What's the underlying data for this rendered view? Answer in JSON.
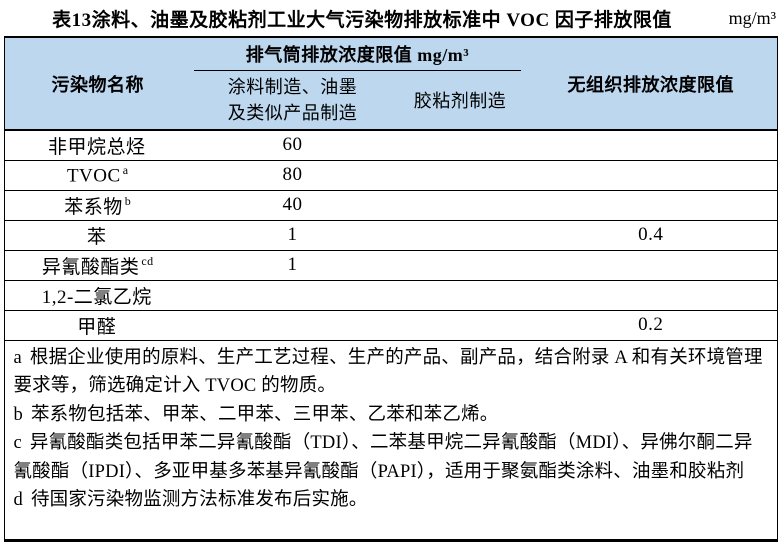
{
  "title": {
    "text": "表13涂料、油墨及胶粘剂工业大气污染物排放标准中 VOC 因子排放限值",
    "unit": "mg/m³"
  },
  "table": {
    "header": {
      "pollutant": "污染物名称",
      "stack_group": "排气筒排放浓度限值 mg/m³",
      "col_paint_line1": "涂料制造、油墨",
      "col_paint_line2": "及类似产品制造",
      "col_adhesive": "胶粘剂制造",
      "col_fugitive": "无组织排放浓度限值"
    },
    "rows": [
      {
        "name": "非甲烷总烃",
        "sup": "",
        "paint": "60",
        "adhesive": "",
        "fugitive": ""
      },
      {
        "name": "TVOC",
        "sup": "a",
        "paint": "80",
        "adhesive": "",
        "fugitive": ""
      },
      {
        "name": "苯系物",
        "sup": "b",
        "paint": "40",
        "adhesive": "",
        "fugitive": ""
      },
      {
        "name": "苯",
        "sup": "",
        "paint": "1",
        "adhesive": "",
        "fugitive": "0.4"
      },
      {
        "name": "异氰酸酯类",
        "sup": "cd",
        "paint": "1",
        "adhesive": "",
        "fugitive": ""
      },
      {
        "name": "1,2-二氯乙烷",
        "sup": "",
        "paint": "",
        "adhesive": "",
        "fugitive": ""
      },
      {
        "name": "甲醛",
        "sup": "",
        "paint": "",
        "adhesive": "",
        "fugitive": "0.2"
      }
    ],
    "footnotes": [
      {
        "label": "a",
        "text": "根据企业使用的原料、生产工艺过程、生产的产品、副产品，结合附录 A 和有关环境管理要求等，筛选确定计入 TVOC 的物质。"
      },
      {
        "label": "b",
        "text": "苯系物包括苯、甲苯、二甲苯、三甲苯、乙苯和苯乙烯。"
      },
      {
        "label": "c",
        "text": "异氰酸酯类包括甲苯二异氰酸酯（TDI）、二苯基甲烷二异氰酸酯（MDI）、异佛尔酮二异氰酸酯（IPDI）、多亚甲基多苯基异氰酸酯（PAPI），适用于聚氨酯类涂料、油墨和胶粘剂"
      },
      {
        "label": "d",
        "text": "待国家污染物监测方法标准发布后实施。"
      }
    ]
  },
  "colors": {
    "header_bg": "#BDD7EE",
    "border": "#000000"
  }
}
